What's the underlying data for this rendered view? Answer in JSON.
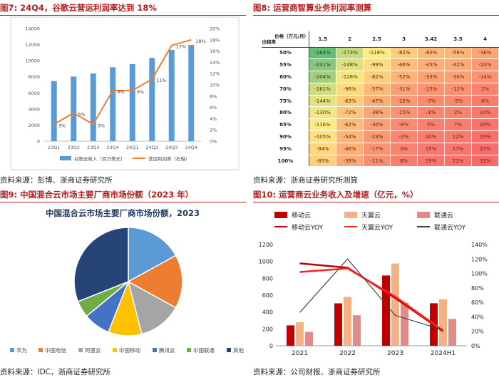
{
  "fig7": {
    "title": "图7:  24Q4，谷歌云营运利润率达到 18%",
    "source": "资料来源：彭博、浙商证券研究所",
    "chart_data": {
      "type": "bar+line",
      "categories": [
        "23Q1",
        "23Q2",
        "23Q3",
        "23Q4",
        "24Q1",
        "24Q2",
        "24Q3",
        "24Q4"
      ],
      "series": [
        {
          "name": "谷歌云收入（百万美元）",
          "type": "bar",
          "axis": "left",
          "values": [
            7454,
            8031,
            8411,
            9192,
            9574,
            10347,
            11353,
            11955
          ]
        },
        {
          "name": "营运利润率（右轴）",
          "type": "line",
          "axis": "right",
          "values": [
            3,
            5,
            3,
            9,
            9,
            11,
            17,
            18
          ]
        }
      ],
      "y_left": {
        "min": 0,
        "max": 14000,
        "ticks": [
          "0",
          "2000",
          "4000",
          "6000",
          "8000",
          "10000",
          "12000",
          "14000"
        ]
      },
      "y_right": {
        "min": 0,
        "max": 20,
        "ticks": [
          "0%",
          "2%",
          "4%",
          "6%",
          "8%",
          "10%",
          "12%",
          "14%",
          "16%",
          "18%",
          "20%"
        ]
      },
      "point_labels": [
        "3%",
        "5%",
        "3%",
        "9%",
        "9%",
        "11%",
        "17%",
        "18%"
      ]
    }
  },
  "fig8": {
    "title": "图8:  运营商智算业务利润率测算",
    "source": "资料来源：浙商证券研究所测算",
    "corner_top": "价格（万元/月）",
    "corner_bottom": "出租率",
    "chart_data": {
      "type": "heatmap",
      "columns": [
        "1.5",
        "2",
        "2.5",
        "3",
        "3.42",
        "3.5",
        "4"
      ],
      "rows": [
        "50%",
        "55%",
        "60%",
        "70%",
        "75%",
        "80%",
        "85%",
        "90%",
        "95%",
        "100%"
      ],
      "values": [
        [
          -264,
          -173,
          -118,
          -82,
          -60,
          -56,
          -36
        ],
        [
          -231,
          -148,
          -99,
          -66,
          -45,
          -42,
          -24
        ],
        [
          -204,
          -128,
          -82,
          -52,
          -33,
          -30,
          -14
        ],
        [
          -161,
          -96,
          -57,
          -31,
          -15,
          -12,
          2
        ],
        [
          -144,
          -83,
          -47,
          -22,
          -7,
          -5,
          8
        ],
        [
          -130,
          -72,
          -38,
          -15,
          -1,
          2,
          14
        ],
        [
          -116,
          -62,
          -30,
          -8,
          5,
          7,
          19
        ],
        [
          -105,
          -54,
          -23,
          -2,
          10,
          12,
          23
        ],
        [
          -94,
          -46,
          -17,
          3,
          15,
          17,
          27
        ],
        [
          -85,
          -39,
          -11,
          8,
          19,
          21,
          31
        ]
      ],
      "unit": "%"
    }
  },
  "fig9": {
    "title": "图9:  中国混合云市场主要厂商市场份额（2023 年）",
    "source": "资料来源：IDC，浙商证券研究所",
    "chart_data": {
      "type": "pie",
      "title": "中国混合云市场主要厂商市场份额，2023",
      "labels": [
        "华为",
        "中国电信",
        "阿里云",
        "中国移动",
        "腾讯云",
        "中国联通",
        "其他"
      ],
      "values": [
        17,
        16,
        13,
        10,
        8,
        5,
        31
      ],
      "colors": [
        "#5b9bd5",
        "#ed7d31",
        "#a5a5a5",
        "#ffc000",
        "#4472c4",
        "#70ad47",
        "#264478"
      ]
    }
  },
  "fig10": {
    "title": "图10:  运营商云业务收入及增速（亿元，%）",
    "source": "资料来源：公司财报、浙商证券研究所",
    "chart_data": {
      "type": "bar+line",
      "categories": [
        "2021",
        "2022",
        "2023",
        "2024H1"
      ],
      "series": [
        {
          "name": "移动云",
          "type": "bar",
          "axis": "left",
          "color": "#c00000",
          "values": [
            242,
            503,
            833,
            504
          ]
        },
        {
          "name": "天翼云",
          "type": "bar",
          "axis": "left",
          "color": "#f4b183",
          "values": [
            279,
            579,
            975,
            552
          ]
        },
        {
          "name": "联通云",
          "type": "bar",
          "axis": "left",
          "color": "#e08a8a",
          "values": [
            164,
            361,
            510,
            318
          ]
        },
        {
          "name": "移动云YOY",
          "type": "line",
          "axis": "right",
          "color": "#c00000",
          "values": [
            114,
            108,
            66,
            20
          ]
        },
        {
          "name": "天翼云YOY",
          "type": "line",
          "axis": "right",
          "color": "#ff2020",
          "values": [
            102,
            107,
            68,
            21
          ]
        },
        {
          "name": "联通云YOY",
          "type": "line",
          "axis": "right",
          "color": "#404040",
          "values": [
            46,
            120,
            42,
            22
          ]
        }
      ],
      "y_left": {
        "min": 0,
        "max": 1200,
        "ticks": [
          "0",
          "200",
          "400",
          "600",
          "800",
          "1000",
          "1200"
        ]
      },
      "y_right": {
        "min": 0,
        "max": 140,
        "ticks": [
          "0%",
          "20%",
          "40%",
          "60%",
          "80%",
          "100%",
          "120%",
          "140%"
        ]
      }
    }
  }
}
